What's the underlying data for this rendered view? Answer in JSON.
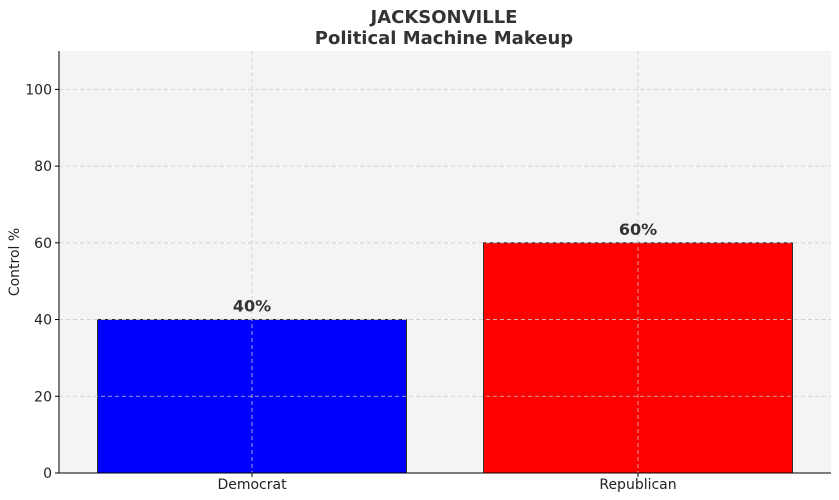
{
  "chart_data": {
    "type": "bar",
    "title": [
      "JACKSONVILLE",
      "Political Machine Makeup"
    ],
    "categories": [
      "Democrat",
      "Republican"
    ],
    "values": [
      40,
      60
    ],
    "value_labels": [
      "40%",
      "60%"
    ],
    "colors": [
      "#0000ff",
      "#ff0000"
    ],
    "xlabel": "",
    "ylabel": "Control %",
    "ylim": [
      0,
      110
    ],
    "yticks": [
      0,
      20,
      40,
      60,
      80,
      100
    ],
    "grid": true,
    "background": "#f4f4f4"
  }
}
